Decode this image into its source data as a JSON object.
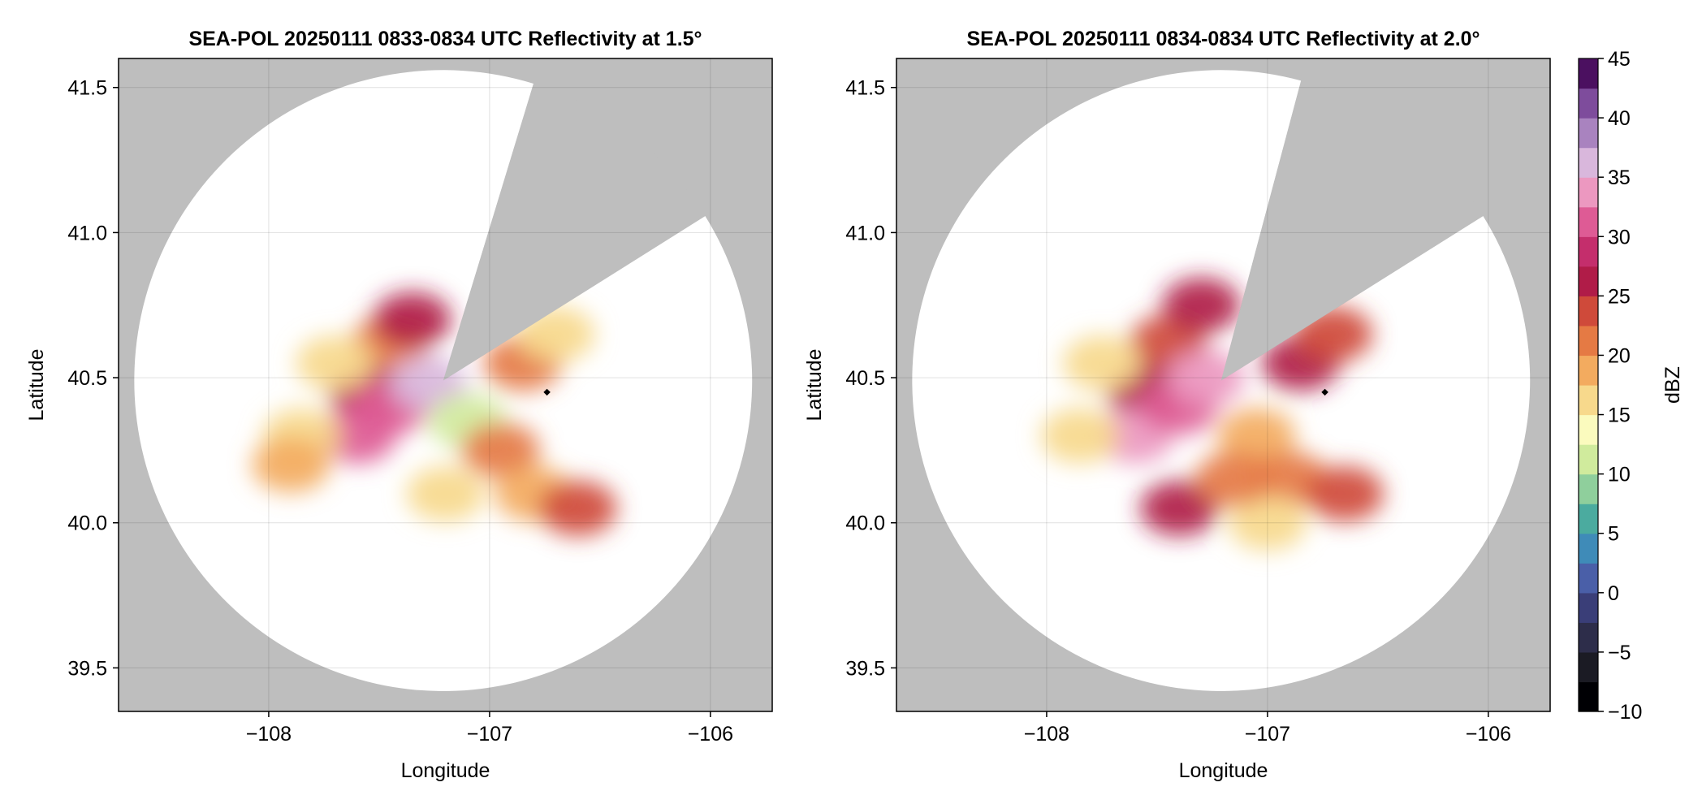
{
  "chart_data": [
    {
      "type": "heatmap",
      "title": "SEA-POL 20250111 0833-0834 UTC Reflectivity at 1.5°",
      "xlabel": "Longitude",
      "ylabel": "Latitude",
      "xlim": [
        -108.68,
        -105.72
      ],
      "ylim": [
        39.35,
        41.6
      ],
      "xticks": [
        -108,
        -107,
        -106
      ],
      "xtick_labels": [
        "−108",
        "−107",
        "−106"
      ],
      "yticks": [
        39.5,
        40.0,
        40.5,
        41.0,
        41.5
      ],
      "ytick_labels": [
        "39.5",
        "40.0",
        "40.5",
        "41.0",
        "41.5"
      ],
      "grid": true,
      "radar_center": [
        -107.21,
        40.49
      ],
      "range_deg_lat": 1.07,
      "sector_blocked_az_deg": [
        17,
        58
      ],
      "marker": [
        -106.74,
        40.45
      ],
      "echo_regions": [
        {
          "lon": -107.45,
          "lat": 40.62,
          "value": 22
        },
        {
          "lon": -107.55,
          "lat": 40.45,
          "value": 25
        },
        {
          "lon": -107.6,
          "lat": 40.3,
          "value": 32
        },
        {
          "lon": -107.45,
          "lat": 40.4,
          "value": 30
        },
        {
          "lon": -107.28,
          "lat": 40.48,
          "value": 35
        },
        {
          "lon": -107.35,
          "lat": 40.7,
          "value": 25
        },
        {
          "lon": -107.7,
          "lat": 40.55,
          "value": 15
        },
        {
          "lon": -107.85,
          "lat": 40.3,
          "value": 15
        },
        {
          "lon": -107.9,
          "lat": 40.2,
          "value": 18
        },
        {
          "lon": -107.1,
          "lat": 40.35,
          "value": 12
        },
        {
          "lon": -106.95,
          "lat": 40.25,
          "value": 20
        },
        {
          "lon": -106.8,
          "lat": 40.1,
          "value": 18
        },
        {
          "lon": -106.6,
          "lat": 40.05,
          "value": 24
        },
        {
          "lon": -106.85,
          "lat": 40.55,
          "value": 22
        },
        {
          "lon": -106.7,
          "lat": 40.65,
          "value": 17
        },
        {
          "lon": -107.2,
          "lat": 40.1,
          "value": 15
        }
      ]
    },
    {
      "type": "heatmap",
      "title": "SEA-POL 20250111 0834-0834 UTC Reflectivity at 2.0°",
      "xlabel": "Longitude",
      "ylabel": "Latitude",
      "xlim": [
        -108.68,
        -105.72
      ],
      "ylim": [
        39.35,
        41.6
      ],
      "xticks": [
        -108,
        -107,
        -106
      ],
      "xtick_labels": [
        "−108",
        "−107",
        "−106"
      ],
      "yticks": [
        39.5,
        40.0,
        40.5,
        41.0,
        41.5
      ],
      "ytick_labels": [
        "39.5",
        "40.0",
        "40.5",
        "41.0",
        "41.5"
      ],
      "grid": true,
      "radar_center": [
        -107.21,
        40.49
      ],
      "range_deg_lat": 1.07,
      "sector_blocked_az_deg": [
        15,
        58
      ],
      "marker": [
        -106.74,
        40.45
      ],
      "echo_regions": [
        {
          "lon": -107.45,
          "lat": 40.62,
          "value": 24
        },
        {
          "lon": -107.55,
          "lat": 40.45,
          "value": 26
        },
        {
          "lon": -107.6,
          "lat": 40.3,
          "value": 33
        },
        {
          "lon": -107.4,
          "lat": 40.4,
          "value": 30
        },
        {
          "lon": -107.28,
          "lat": 40.5,
          "value": 34
        },
        {
          "lon": -107.3,
          "lat": 40.75,
          "value": 26
        },
        {
          "lon": -107.75,
          "lat": 40.55,
          "value": 16
        },
        {
          "lon": -107.85,
          "lat": 40.3,
          "value": 17
        },
        {
          "lon": -107.4,
          "lat": 40.05,
          "value": 26
        },
        {
          "lon": -107.05,
          "lat": 40.3,
          "value": 18
        },
        {
          "lon": -106.9,
          "lat": 40.15,
          "value": 22
        },
        {
          "lon": -106.65,
          "lat": 40.1,
          "value": 24
        },
        {
          "lon": -106.85,
          "lat": 40.55,
          "value": 26
        },
        {
          "lon": -106.7,
          "lat": 40.65,
          "value": 24
        },
        {
          "lon": -107.0,
          "lat": 40.0,
          "value": 16
        },
        {
          "lon": -107.15,
          "lat": 40.15,
          "value": 20
        }
      ]
    }
  ],
  "colorbar": {
    "label": "dBZ",
    "range": [
      -10,
      45
    ],
    "ticks": [
      -10,
      -5,
      0,
      5,
      10,
      15,
      20,
      25,
      30,
      35,
      40,
      45
    ],
    "tick_labels": [
      "−10",
      "−5",
      "0",
      "5",
      "10",
      "15",
      "20",
      "25",
      "30",
      "35",
      "40",
      "45"
    ],
    "colors": [
      "#000004",
      "#1b1b24",
      "#2d2d4a",
      "#3a3e78",
      "#4a5fa8",
      "#3f8bb8",
      "#4bab9f",
      "#8fcf9c",
      "#d0eb9d",
      "#fbfbbe",
      "#f7d98c",
      "#f3ab5f",
      "#e57a44",
      "#cf4a3a",
      "#b01c48",
      "#c42e6c",
      "#de5b95",
      "#ec98c0",
      "#d9b7dc",
      "#a983bf",
      "#7e4c9c",
      "#4b1060"
    ]
  },
  "no_data_color": "#bebebe"
}
